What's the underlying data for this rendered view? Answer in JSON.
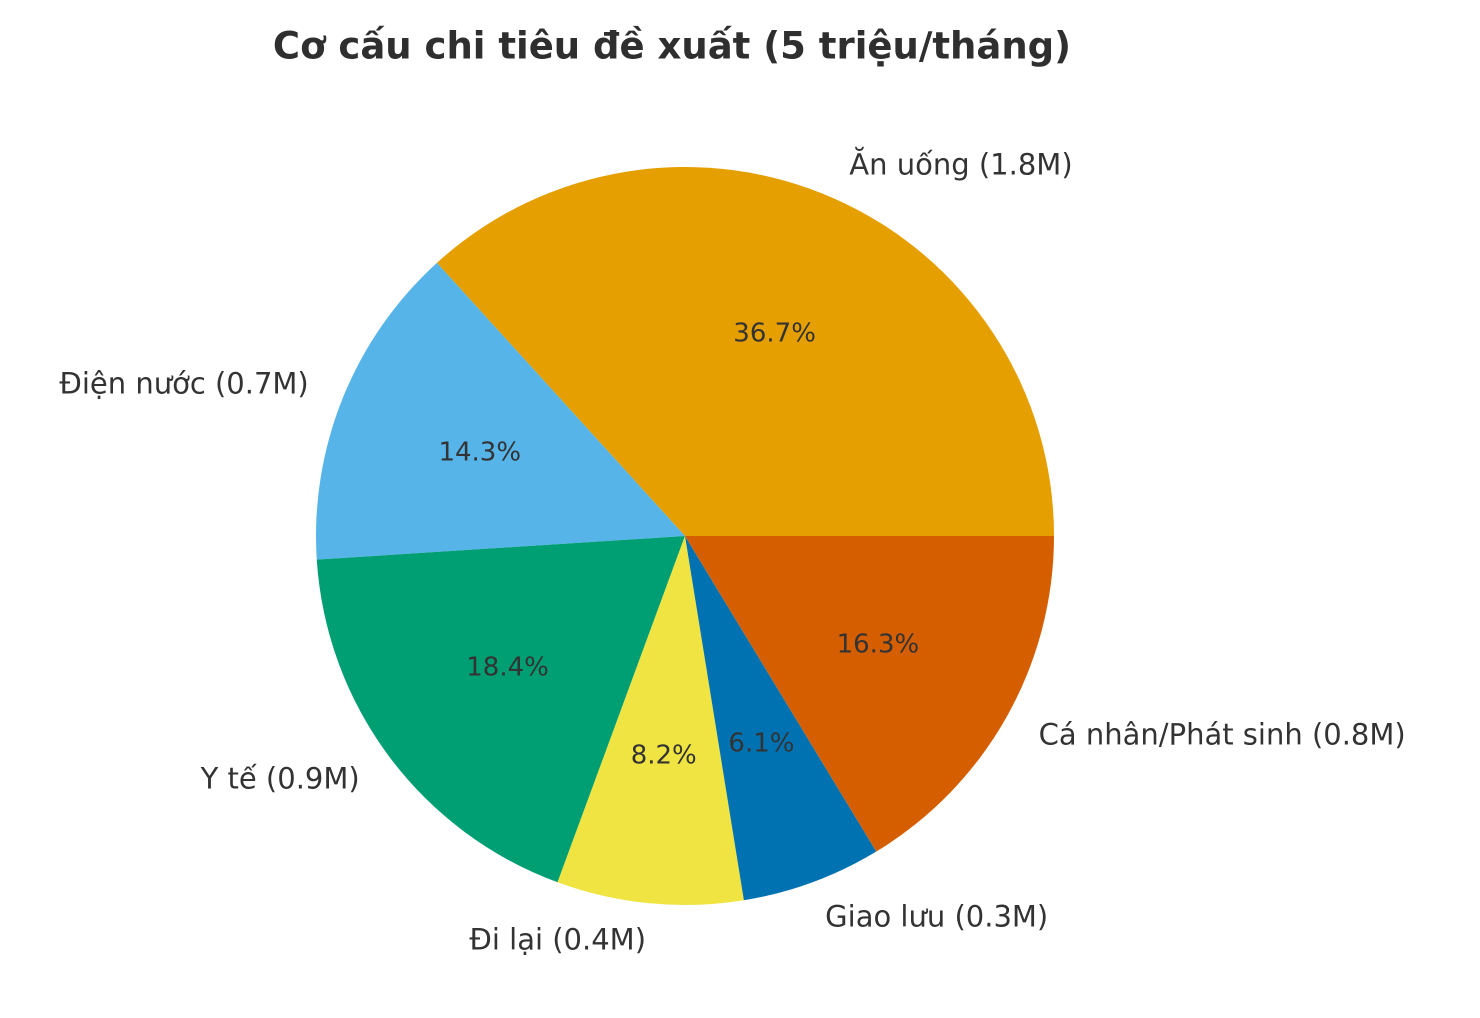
{
  "chart_data": {
    "type": "pie",
    "title": "Cơ cấu chi tiêu đề xuất (5 triệu/tháng)",
    "start_angle_deg": 0,
    "direction": "counterclockwise",
    "label_distance": 1.1,
    "pct_distance": 0.6,
    "legend_position": "none",
    "text_color": "#333333",
    "background_color": "#ffffff",
    "slices": [
      {
        "id": "an-uong",
        "name": "Ăn uống",
        "label": "Ăn uống (1.8M)",
        "value": 1.8,
        "pct": 36.7,
        "pct_label": "36.7%",
        "color": "#E69F00"
      },
      {
        "id": "dien-nuoc",
        "name": "Điện nước",
        "label": "Điện nước (0.7M)",
        "value": 0.7,
        "pct": 14.3,
        "pct_label": "14.3%",
        "color": "#56B4E9"
      },
      {
        "id": "y-te",
        "name": "Y tế",
        "label": "Y tế (0.9M)",
        "value": 0.9,
        "pct": 18.4,
        "pct_label": "18.4%",
        "color": "#009E73"
      },
      {
        "id": "di-lai",
        "name": "Đi lại",
        "label": "Đi lại (0.4M)",
        "value": 0.4,
        "pct": 8.2,
        "pct_label": "8.2%",
        "color": "#F0E442"
      },
      {
        "id": "giao-luu",
        "name": "Giao lưu",
        "label": "Giao lưu (0.3M)",
        "value": 0.3,
        "pct": 6.1,
        "pct_label": "6.1%",
        "color": "#0072B2"
      },
      {
        "id": "ca-nhan-phat-sinh",
        "name": "Cá nhân/Phát sinh",
        "label": "Cá nhân/Phát sinh (0.8M)",
        "value": 0.8,
        "pct": 16.3,
        "pct_label": "16.3%",
        "color": "#D55E00"
      }
    ]
  }
}
